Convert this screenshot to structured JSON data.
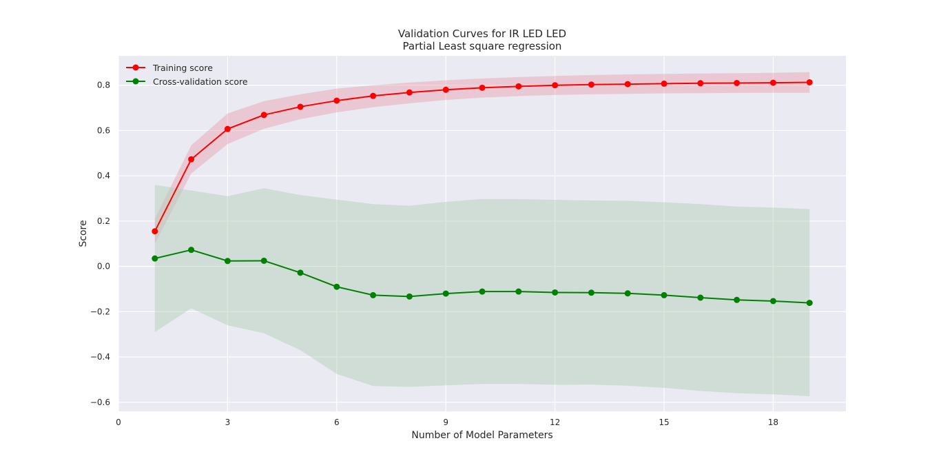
{
  "chart_data": {
    "type": "line",
    "title": "Validation Curves for IR LED LED",
    "subtitle": "Partial Least square regression",
    "xlabel": "Number of Model Parameters",
    "ylabel": "Score",
    "xlim": [
      0,
      20
    ],
    "ylim": [
      -0.64,
      0.93
    ],
    "xticks": [
      0,
      3,
      6,
      9,
      12,
      15,
      18
    ],
    "yticks": [
      -0.6,
      -0.4,
      -0.2,
      0.0,
      0.2,
      0.4,
      0.6,
      0.8
    ],
    "grid": true,
    "legend_position": "top-left",
    "x": [
      1,
      2,
      3,
      4,
      5,
      6,
      7,
      8,
      9,
      10,
      11,
      12,
      13,
      14,
      15,
      16,
      17,
      18,
      19
    ],
    "series": [
      {
        "name": "Training score",
        "color": "#ff0000",
        "band_color": "#e8a0ac",
        "values": [
          0.155,
          0.473,
          0.607,
          0.669,
          0.705,
          0.732,
          0.753,
          0.768,
          0.78,
          0.789,
          0.795,
          0.8,
          0.803,
          0.805,
          0.807,
          0.809,
          0.81,
          0.811,
          0.813
        ],
        "upper": [
          0.21,
          0.535,
          0.675,
          0.73,
          0.76,
          0.785,
          0.8,
          0.812,
          0.822,
          0.83,
          0.836,
          0.841,
          0.845,
          0.848,
          0.85,
          0.852,
          0.853,
          0.855,
          0.858
        ],
        "lower": [
          0.1,
          0.41,
          0.54,
          0.608,
          0.65,
          0.68,
          0.703,
          0.72,
          0.735,
          0.745,
          0.752,
          0.757,
          0.76,
          0.762,
          0.764,
          0.765,
          0.766,
          0.767,
          0.767
        ]
      },
      {
        "name": "Cross-validation score",
        "color": "#008000",
        "band_color": "#b0cfb4",
        "values": [
          0.035,
          0.073,
          0.024,
          0.025,
          -0.028,
          -0.09,
          -0.127,
          -0.133,
          -0.12,
          -0.111,
          -0.111,
          -0.115,
          -0.116,
          -0.119,
          -0.127,
          -0.138,
          -0.148,
          -0.153,
          -0.161
        ],
        "upper": [
          0.36,
          0.335,
          0.31,
          0.345,
          0.315,
          0.295,
          0.275,
          0.268,
          0.285,
          0.298,
          0.297,
          0.294,
          0.291,
          0.29,
          0.283,
          0.275,
          0.264,
          0.26,
          0.253
        ],
        "lower": [
          -0.29,
          -0.185,
          -0.26,
          -0.295,
          -0.37,
          -0.475,
          -0.528,
          -0.532,
          -0.525,
          -0.519,
          -0.519,
          -0.523,
          -0.522,
          -0.527,
          -0.536,
          -0.55,
          -0.56,
          -0.565,
          -0.573
        ]
      }
    ]
  }
}
